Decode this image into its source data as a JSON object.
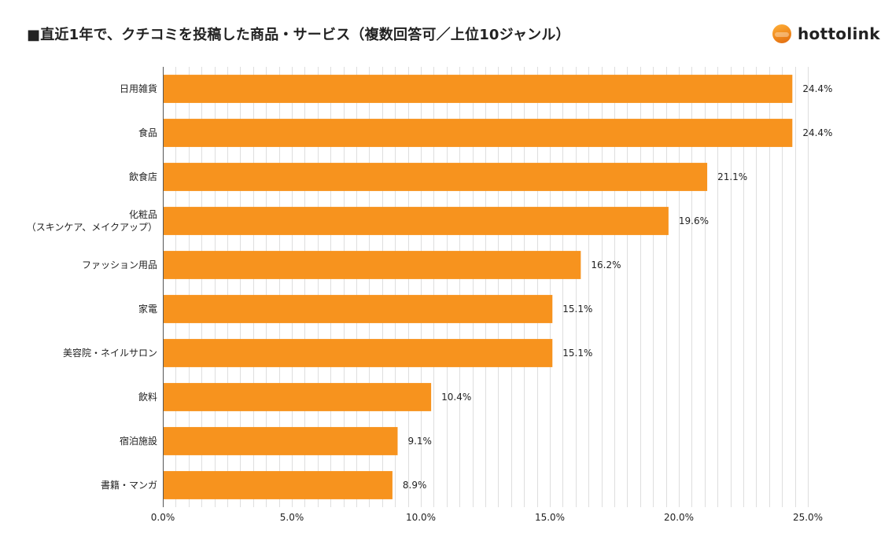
{
  "title": "■直近1年で、クチコミを投稿した商品・サービス（複数回答可／上位10ジャンル）",
  "brand": {
    "name": "hottolink",
    "icon": "hottolink-logo-icon"
  },
  "colors": {
    "bar": "#f7931e",
    "grid": "#dedede",
    "axis": "#555555",
    "text": "#222222"
  },
  "chart_data": {
    "type": "bar",
    "orientation": "horizontal",
    "categories": [
      [
        "日用雑貨"
      ],
      [
        "食品"
      ],
      [
        "飲食店"
      ],
      [
        "化粧品",
        "（スキンケア、メイクアップ）"
      ],
      [
        "ファッション用品"
      ],
      [
        "家電"
      ],
      [
        "美容院・ネイルサロン"
      ],
      [
        "飲料"
      ],
      [
        "宿泊施設"
      ],
      [
        "書籍・マンガ"
      ]
    ],
    "values": [
      24.4,
      24.4,
      21.1,
      19.6,
      16.2,
      15.1,
      15.1,
      10.4,
      9.1,
      8.9
    ],
    "value_labels": [
      "24.4%",
      "24.4%",
      "21.1%",
      "19.6%",
      "16.2%",
      "15.1%",
      "15.1%",
      "10.4%",
      "9.1%",
      "8.9%"
    ],
    "xlim": [
      0,
      25
    ],
    "xticks": [
      0,
      5,
      10,
      15,
      20,
      25
    ],
    "xtick_labels": [
      "0.0%",
      "5.0%",
      "10.0%",
      "15.0%",
      "20.0%",
      "25.0%"
    ],
    "minor_grid_step": 0.5,
    "grid": true,
    "legend": "none"
  }
}
